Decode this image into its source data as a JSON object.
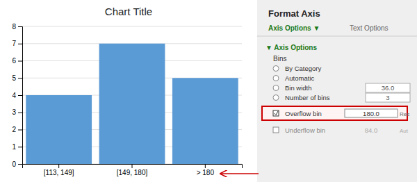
{
  "chart_data": {
    "type": "bar",
    "title": "Chart Title",
    "categories": [
      "[113, 149]",
      "[149, 180]",
      "> 180"
    ],
    "values": [
      4,
      7,
      5
    ],
    "color": "#5B9BD5",
    "ylim": [
      0,
      8
    ],
    "yticks": [
      0,
      1,
      2,
      3,
      4,
      5,
      6,
      7,
      8
    ],
    "grid": true,
    "annotations": [
      "Format Axis",
      "Axis Options  ▼",
      "Text Options",
      "▼ Axis Options",
      "Bins",
      "By Category",
      "Automatic",
      "Bin width",
      "Number of bins",
      "36.0",
      "3",
      "Overflow bin",
      "180.0",
      "Res",
      "Underflow bin",
      "84.0",
      "Aut"
    ]
  }
}
